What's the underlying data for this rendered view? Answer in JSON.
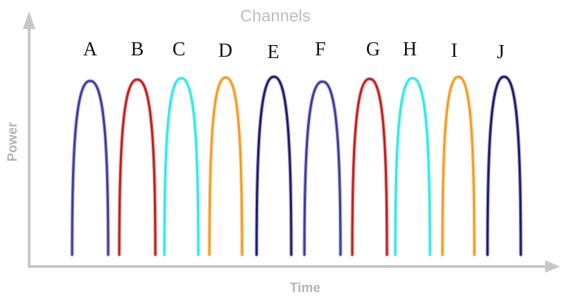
{
  "diagram": {
    "title": "Channels",
    "x_axis_label": "Time",
    "y_axis_label": "Power",
    "axis_color": "#c8c8c8",
    "channels": [
      {
        "label": "A",
        "color": "#3c3c9a"
      },
      {
        "label": "B",
        "color": "#c01e1e"
      },
      {
        "label": "C",
        "color": "#2fe9ea"
      },
      {
        "label": "D",
        "color": "#f59b20"
      },
      {
        "label": "E",
        "color": "#1a1a6e"
      },
      {
        "label": "F",
        "color": "#3c3c9a"
      },
      {
        "label": "G",
        "color": "#c01e1e"
      },
      {
        "label": "H",
        "color": "#2fe9ea"
      },
      {
        "label": "I",
        "color": "#f59b20"
      },
      {
        "label": "J",
        "color": "#1a1a6e"
      }
    ]
  }
}
